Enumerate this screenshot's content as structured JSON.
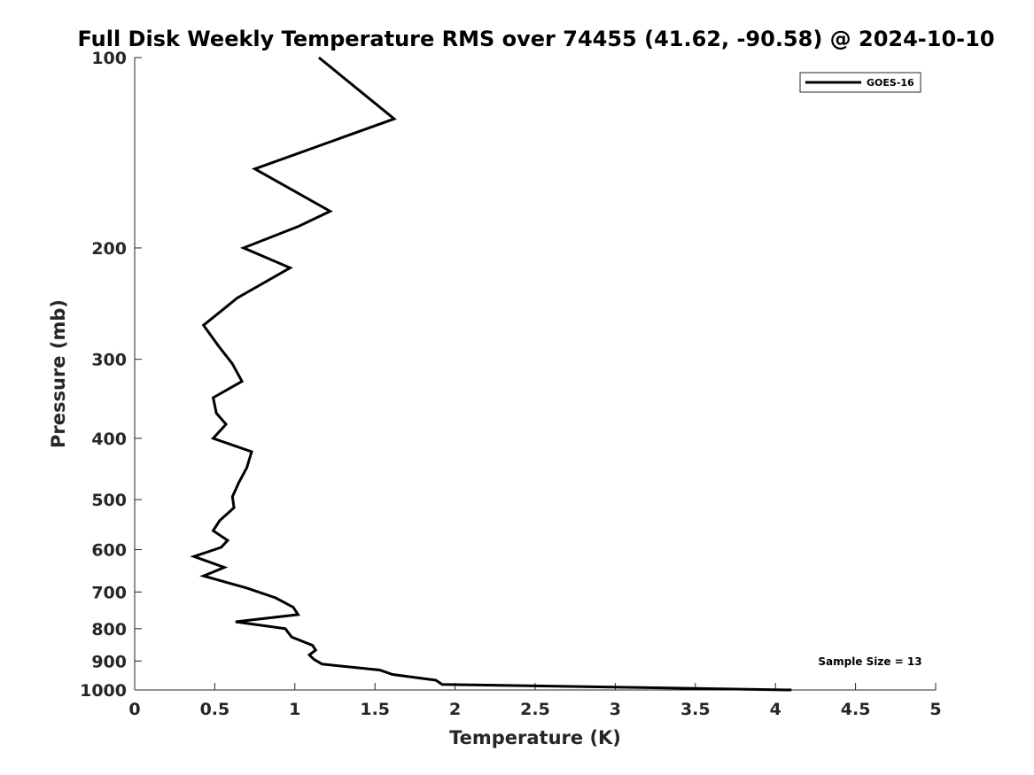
{
  "chart_data": {
    "type": "line",
    "title": "Full Disk Weekly Temperature RMS over 74455 (41.62, -90.58) @ 2024-10-10",
    "xlabel": "Temperature (K)",
    "ylabel": "Pressure (mb)",
    "xlim": [
      0,
      5
    ],
    "ylim": [
      100,
      1000
    ],
    "y_scale": "log",
    "y_reversed": true,
    "x_ticks": [
      "0",
      "0.5",
      "1",
      "1.5",
      "2",
      "2.5",
      "3",
      "3.5",
      "4",
      "4.5",
      "5"
    ],
    "y_ticks": [
      "100",
      "200",
      "300",
      "400",
      "500",
      "600",
      "700",
      "800",
      "900",
      "1000"
    ],
    "grid": false,
    "legend_position": "top-right",
    "annotation": "Sample Size = 13",
    "line_color": "#000000",
    "series": [
      {
        "name": "GOES-16",
        "x": [
          1.15,
          1.62,
          0.75,
          1.22,
          1.02,
          0.68,
          0.97,
          0.64,
          0.43,
          0.52,
          0.61,
          0.67,
          0.49,
          0.51,
          0.57,
          0.49,
          0.73,
          0.7,
          0.65,
          0.61,
          0.62,
          0.53,
          0.49,
          0.58,
          0.54,
          0.37,
          0.56,
          0.43,
          0.7,
          0.88,
          0.99,
          1.02,
          0.63,
          0.94,
          0.98,
          1.11,
          1.13,
          1.09,
          1.12,
          1.17,
          1.53,
          1.61,
          1.88,
          1.92,
          4.1
        ],
        "y": [
          100,
          125,
          150,
          175,
          185,
          200,
          215,
          240,
          265,
          285,
          305,
          325,
          345,
          365,
          380,
          400,
          420,
          445,
          470,
          495,
          515,
          540,
          560,
          580,
          595,
          615,
          640,
          660,
          690,
          715,
          740,
          760,
          780,
          800,
          825,
          850,
          865,
          880,
          895,
          910,
          930,
          945,
          965,
          980,
          1000
        ]
      }
    ]
  }
}
